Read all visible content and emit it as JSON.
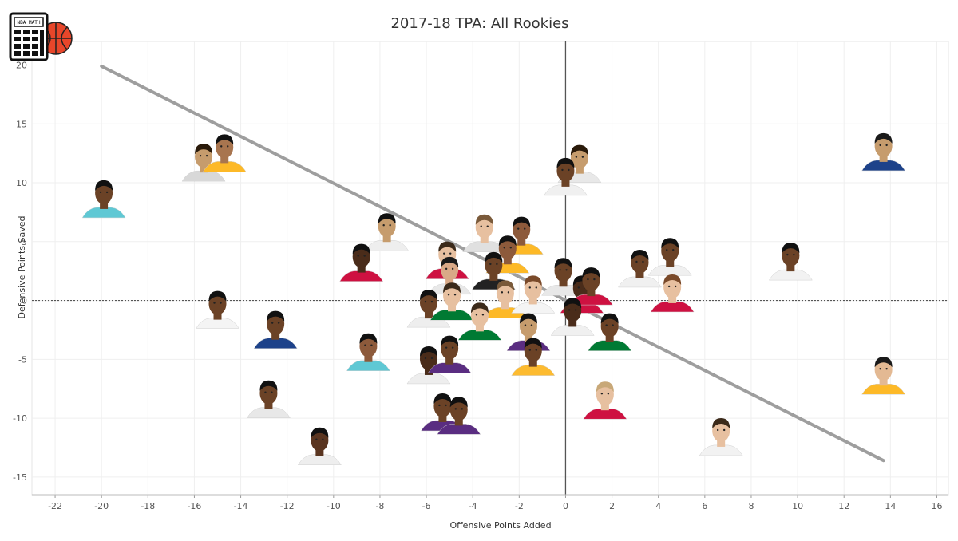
{
  "logo": {
    "text": "NBA MATH"
  },
  "chart_data": {
    "type": "scatter",
    "title": "2017-18 TPA: All Rookies",
    "xlabel": "Offensive Points Added",
    "ylabel": "Defensive Points Saved",
    "xlim": [
      -23,
      16.5
    ],
    "ylim": [
      -16.5,
      22
    ],
    "xticks": [
      -22,
      -20,
      -18,
      -16,
      -14,
      -12,
      -10,
      -8,
      -6,
      -4,
      -2,
      0,
      2,
      4,
      6,
      8,
      10,
      12,
      14,
      16
    ],
    "yticks": [
      -15,
      -10,
      -5,
      0,
      5,
      10,
      15,
      20
    ],
    "grid": true,
    "trendline": {
      "x1": -20,
      "y1": 19.9,
      "x2": 13.7,
      "y2": -13.6,
      "color": "#9e9e9e"
    },
    "points": [
      {
        "x": 13.7,
        "y": 11.5,
        "jersey": "#1d428a",
        "skin": "#c69c6d",
        "hair": "#1a1a1a"
      },
      {
        "x": 13.7,
        "y": -7.5,
        "jersey": "#fdb927",
        "skin": "#e3b993",
        "hair": "#1a1a1a"
      },
      {
        "x": 6.7,
        "y": -12.7,
        "jersey": "#f2f2f2",
        "skin": "#e7c0a0",
        "hair": "#3b2a1a"
      },
      {
        "x": 9.7,
        "y": 2.2,
        "jersey": "#f2f2f2",
        "skin": "#6b4226",
        "hair": "#111111"
      },
      {
        "x": 0.6,
        "y": 10.5,
        "jersey": "#e8e8e8",
        "skin": "#c69c6d",
        "hair": "#2a1a0a"
      },
      {
        "x": 0.0,
        "y": 9.4,
        "jersey": "#f0f0f0",
        "skin": "#6b4226",
        "hair": "#111111"
      },
      {
        "x": -19.9,
        "y": 7.5,
        "jersey": "#5fc8d4",
        "skin": "#6b4226",
        "hair": "#111111"
      },
      {
        "x": -15.6,
        "y": 10.6,
        "jersey": "#d8d8d8",
        "skin": "#c69c6d",
        "hair": "#2a1a0a"
      },
      {
        "x": -14.7,
        "y": 11.4,
        "jersey": "#fdb927",
        "skin": "#a8754f",
        "hair": "#111111"
      },
      {
        "x": -7.7,
        "y": 4.7,
        "jersey": "#eeeeee",
        "skin": "#c69c6d",
        "hair": "#111111"
      },
      {
        "x": -8.8,
        "y": 2.1,
        "jersey": "#ce1141",
        "skin": "#4a2c1a",
        "hair": "#111111"
      },
      {
        "x": -15.0,
        "y": -1.9,
        "jersey": "#f4f4f4",
        "skin": "#6b4226",
        "hair": "#111111"
      },
      {
        "x": -12.5,
        "y": -3.6,
        "jersey": "#1d428a",
        "skin": "#6b4226",
        "hair": "#111111"
      },
      {
        "x": -8.5,
        "y": -5.5,
        "jersey": "#5fc8d4",
        "skin": "#8d5a3b",
        "hair": "#111111"
      },
      {
        "x": -12.8,
        "y": -9.5,
        "jersey": "#e8e8e8",
        "skin": "#6b4226",
        "hair": "#111111"
      },
      {
        "x": -10.6,
        "y": -13.5,
        "jersey": "#eeeeee",
        "skin": "#5a3520",
        "hair": "#111111"
      },
      {
        "x": -3.5,
        "y": 4.6,
        "jersey": "#e0e0e0",
        "skin": "#e7c0a0",
        "hair": "#7a5a3a"
      },
      {
        "x": -1.9,
        "y": 4.4,
        "jersey": "#fdb927",
        "skin": "#8d5a3b",
        "hair": "#111111"
      },
      {
        "x": -5.1,
        "y": 2.3,
        "jersey": "#ce1141",
        "skin": "#e7c0a0",
        "hair": "#3b2a1a"
      },
      {
        "x": -2.5,
        "y": 2.8,
        "jersey": "#fdb927",
        "skin": "#8d5a3b",
        "hair": "#111111"
      },
      {
        "x": -3.1,
        "y": 1.4,
        "jersey": "#222222",
        "skin": "#6b4226",
        "hair": "#111111"
      },
      {
        "x": -5.0,
        "y": 1.0,
        "jersey": "#e8e8e8",
        "skin": "#d9a987",
        "hair": "#1a1a1a"
      },
      {
        "x": -5.9,
        "y": -1.8,
        "jersey": "#eeeeee",
        "skin": "#6b4226",
        "hair": "#111111"
      },
      {
        "x": -4.9,
        "y": -1.2,
        "jersey": "#007a33",
        "skin": "#e7c0a0",
        "hair": "#3b2a1a"
      },
      {
        "x": -2.6,
        "y": -1.0,
        "jersey": "#fdb927",
        "skin": "#e7c0a0",
        "hair": "#7a5a3a"
      },
      {
        "x": -1.4,
        "y": -0.6,
        "jersey": "#f4f4f4",
        "skin": "#e7c0a0",
        "hair": "#7a4a2a"
      },
      {
        "x": -0.1,
        "y": 0.9,
        "jersey": "#e8e8e8",
        "skin": "#6b4226",
        "hair": "#111111"
      },
      {
        "x": 0.7,
        "y": -0.6,
        "jersey": "#ce1141",
        "skin": "#4a2c1a",
        "hair": "#111111"
      },
      {
        "x": 1.1,
        "y": 0.1,
        "jersey": "#ce1141",
        "skin": "#6b4226",
        "hair": "#111111"
      },
      {
        "x": -3.7,
        "y": -2.9,
        "jersey": "#007a33",
        "skin": "#e7c0a0",
        "hair": "#3b2a1a"
      },
      {
        "x": -1.6,
        "y": -3.8,
        "jersey": "#5a2d81",
        "skin": "#c69c6d",
        "hair": "#111111"
      },
      {
        "x": -1.4,
        "y": -5.9,
        "jersey": "#fdbb30",
        "skin": "#6b4226",
        "hair": "#111111"
      },
      {
        "x": 1.9,
        "y": -3.8,
        "jersey": "#007a33",
        "skin": "#6b4226",
        "hair": "#111111"
      },
      {
        "x": 0.3,
        "y": -2.5,
        "jersey": "#f0f0f0",
        "skin": "#4a2c1a",
        "hair": "#111111"
      },
      {
        "x": 3.2,
        "y": 1.6,
        "jersey": "#f0f0f0",
        "skin": "#6b4226",
        "hair": "#111111"
      },
      {
        "x": 4.5,
        "y": 2.6,
        "jersey": "#f0f0f0",
        "skin": "#6b4226",
        "hair": "#111111"
      },
      {
        "x": 4.6,
        "y": -0.5,
        "jersey": "#ce1141",
        "skin": "#e7c0a0",
        "hair": "#7a4a2a"
      },
      {
        "x": 1.7,
        "y": -9.6,
        "jersey": "#ce1141",
        "skin": "#e7c0a0",
        "hair": "#c8a878"
      },
      {
        "x": -5.9,
        "y": -6.6,
        "jersey": "#eeeeee",
        "skin": "#4a2c1a",
        "hair": "#111111"
      },
      {
        "x": -5.0,
        "y": -5.7,
        "jersey": "#5a2d81",
        "skin": "#6b4226",
        "hair": "#111111"
      },
      {
        "x": -5.3,
        "y": -10.6,
        "jersey": "#5a2d81",
        "skin": "#6b4226",
        "hair": "#111111"
      },
      {
        "x": -4.6,
        "y": -10.9,
        "jersey": "#5a2d81",
        "skin": "#6b4226",
        "hair": "#111111"
      }
    ]
  }
}
